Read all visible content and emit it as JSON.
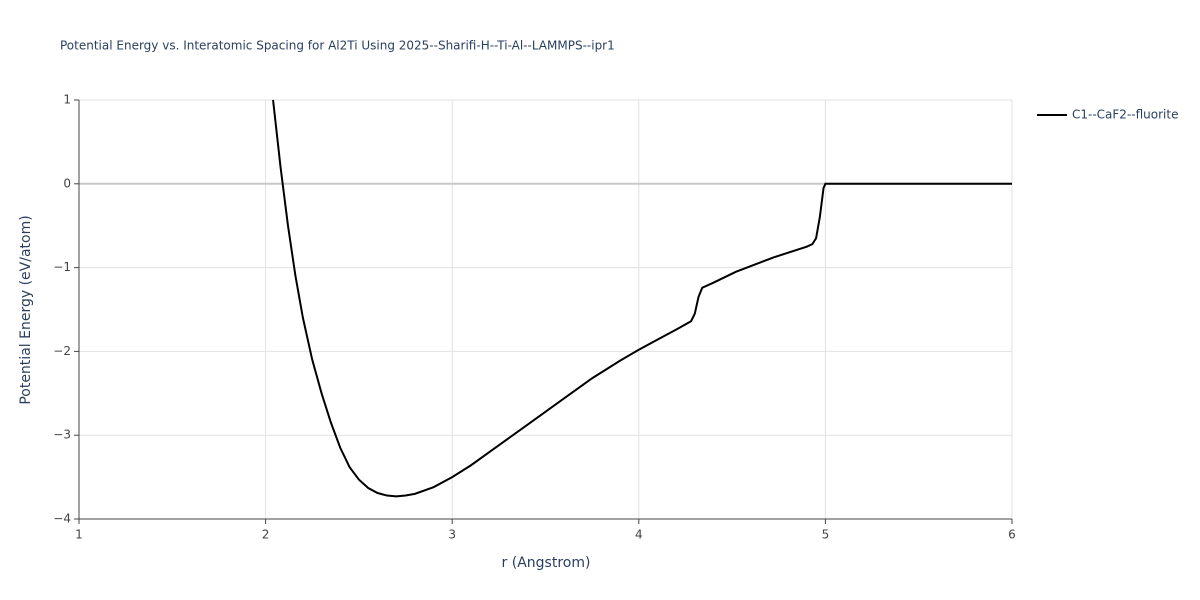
{
  "chart_data": {
    "type": "line",
    "title": "Potential Energy vs. Interatomic Spacing for Al2Ti Using 2025--Sharifi-H--Ti-Al--LAMMPS--ipr1",
    "x_label": "r (Angstrom)",
    "y_label": "Potential Energy (eV/atom)",
    "xlim": [
      1,
      6
    ],
    "ylim": [
      -4,
      1
    ],
    "xticks": [
      1,
      2,
      3,
      4,
      5,
      6
    ],
    "yticks": [
      {
        "value": -4,
        "label": "−4"
      },
      {
        "value": -3,
        "label": "−3"
      },
      {
        "value": -2,
        "label": "−2"
      },
      {
        "value": -1,
        "label": "−1"
      },
      0,
      1
    ],
    "grid": true,
    "legend": "right",
    "x": [
      2.04,
      2.08,
      2.12,
      2.16,
      2.2,
      2.25,
      2.3,
      2.35,
      2.4,
      2.45,
      2.5,
      2.55,
      2.6,
      2.65,
      2.7,
      2.75,
      2.8,
      2.9,
      3.0,
      3.1,
      3.2,
      3.4,
      3.6,
      3.75,
      3.9,
      4.0,
      4.1,
      4.2,
      4.28,
      4.3,
      4.32,
      4.34,
      4.4,
      4.52,
      4.72,
      4.9,
      4.93,
      4.95,
      4.97,
      4.99,
      5.0,
      6.0
    ],
    "series": [
      {
        "name": "C1--CaF2--fluorite",
        "color": "#000000",
        "values": [
          1.0,
          0.2,
          -0.5,
          -1.1,
          -1.6,
          -2.1,
          -2.5,
          -2.85,
          -3.15,
          -3.38,
          -3.53,
          -3.63,
          -3.69,
          -3.72,
          -3.73,
          -3.72,
          -3.7,
          -3.62,
          -3.5,
          -3.36,
          -3.2,
          -2.88,
          -2.56,
          -2.32,
          -2.11,
          -1.98,
          -1.86,
          -1.74,
          -1.64,
          -1.55,
          -1.35,
          -1.24,
          -1.18,
          -1.05,
          -0.88,
          -0.75,
          -0.72,
          -0.65,
          -0.4,
          -0.05,
          0,
          0
        ]
      }
    ]
  }
}
